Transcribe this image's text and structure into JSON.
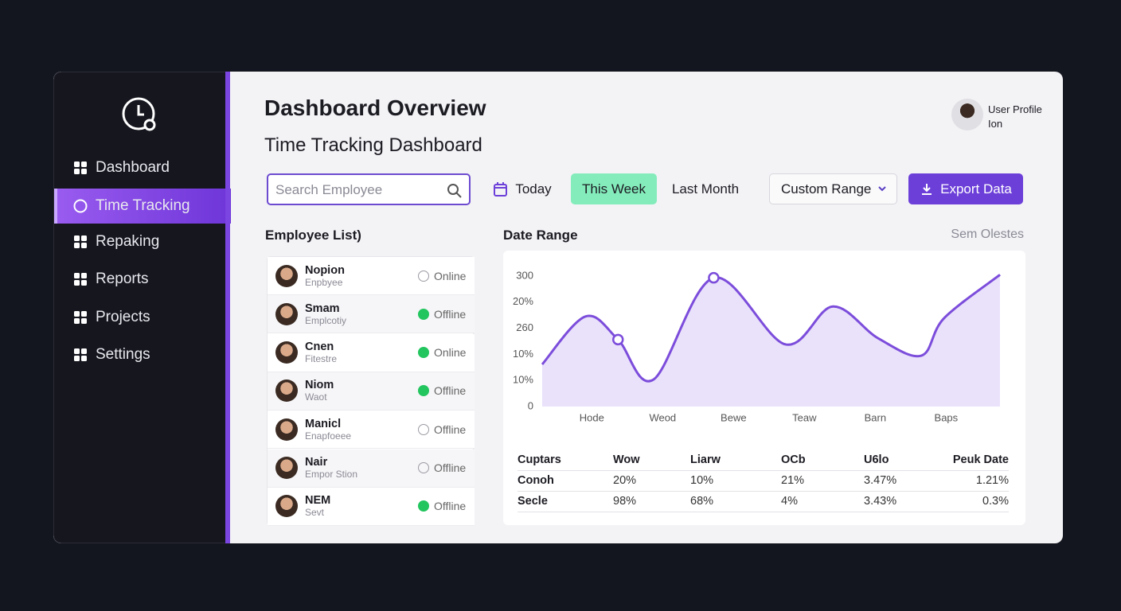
{
  "sidebar": {
    "nav": [
      "Dashboard",
      "Time Tracking",
      "Repaking",
      "Reports",
      "Projects",
      "Settings"
    ],
    "active": 1
  },
  "header": {
    "title": "Dashboard Overview",
    "subtitle": "Time Tracking Dashboard",
    "profile": "User Profile Ion"
  },
  "toolbar": {
    "search_placeholder": "Search Employee",
    "filters": [
      "Today",
      "This Week",
      "Last Month"
    ],
    "selected_filter": 1,
    "range_select": "Custom Range",
    "export": "Export Data"
  },
  "employees": {
    "title": "Employee List)",
    "rows": [
      {
        "name": "Nopion",
        "role": "Enpbyee",
        "status": "Online",
        "dot_filled": false
      },
      {
        "name": "Smam",
        "role": "Emplcotiy",
        "status": "Offline",
        "dot_filled": true
      },
      {
        "name": "Cnen",
        "role": "Fitestre",
        "status": "Online",
        "dot_filled": true
      },
      {
        "name": "Niom",
        "role": "Waot",
        "status": "Offline",
        "dot_filled": true
      },
      {
        "name": "Manicl",
        "role": "Enapfoeee",
        "status": "Offline",
        "dot_filled": false
      },
      {
        "name": "Nair",
        "role": "Empor Stion",
        "status": "Offline",
        "dot_filled": false
      },
      {
        "name": "NEM",
        "role": "Sevt",
        "status": "Offline",
        "dot_filled": true
      }
    ]
  },
  "chart_panel": {
    "title": "Date Range",
    "legend": "Sem Olestes"
  },
  "chart_data": {
    "type": "line",
    "x": [
      -0.7,
      -0.09,
      0.37,
      0.87,
      1.72,
      2.73,
      3.4,
      4.04,
      4.65,
      4.97,
      5.76
    ],
    "series": [
      {
        "color": "#7c4ddb",
        "values": [
          97,
          207,
          154,
          62,
          296,
          143,
          230,
          157,
          117,
          203,
          303
        ]
      }
    ],
    "markers": [
      2,
      4
    ],
    "area_color": "#e6ddfa",
    "xlim": [
      -0.7,
      5.76
    ],
    "xticks": [
      {
        "value": 0,
        "label": "Hode"
      },
      {
        "value": 1,
        "label": "Weod"
      },
      {
        "value": 2,
        "label": "Bewe"
      },
      {
        "value": 3,
        "label": "Teaw"
      },
      {
        "value": 4,
        "label": "Barn"
      },
      {
        "value": 5,
        "label": "Baps"
      }
    ],
    "ylim": [
      0,
      300
    ],
    "yticks": [
      0,
      {
        "value": 60,
        "label": "10%"
      },
      {
        "value": 120,
        "label": "10%"
      },
      {
        "value": 180,
        "label": "260"
      },
      {
        "value": 240,
        "label": "20%"
      },
      300
    ],
    "grid": false
  },
  "table": {
    "header": [
      "Cuptars",
      "Wow",
      "Liarw",
      "OCb",
      "U6lo",
      "Peuk Date"
    ],
    "rows": [
      [
        "Conoh",
        "20%",
        "10%",
        "21%",
        "3.47%",
        "1.21%"
      ],
      [
        "Secle",
        "98%",
        "68%",
        "4%",
        "3.43%",
        "0.3%"
      ]
    ]
  }
}
